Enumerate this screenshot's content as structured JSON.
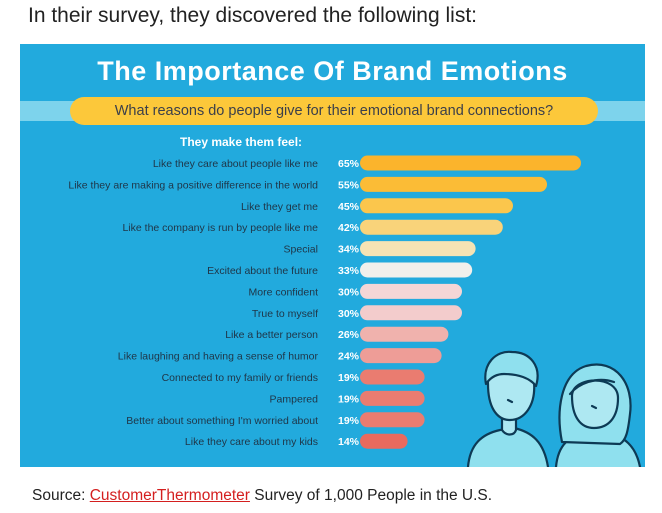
{
  "intro_text": "In their survey, they discovered the following list:",
  "chart_data": {
    "type": "bar",
    "orientation": "horizontal",
    "title": "The Importance Of Brand Emotions",
    "subtitle": "What reasons do people give for their emotional brand connections?",
    "header": "They make them feel:",
    "xlim": [
      0,
      65
    ],
    "categories": [
      "Like they care about people like me",
      "Like they are making a positive difference in the world",
      "Like they get me",
      "Like the company is run by people like me",
      "Special",
      "Excited about the future",
      "More confident",
      "True to myself",
      "Like a better person",
      "Like laughing and having a sense of humor",
      "Connected to my family or friends",
      "Pampered",
      "Better about something I'm worried about",
      "Like they care about my kids"
    ],
    "values": [
      65,
      55,
      45,
      42,
      34,
      33,
      30,
      30,
      26,
      24,
      19,
      19,
      19,
      14
    ],
    "value_labels": [
      "65%",
      "55%",
      "45%",
      "42%",
      "34%",
      "33%",
      "30%",
      "30%",
      "26%",
      "24%",
      "19%",
      "19%",
      "19%",
      "14%"
    ],
    "bar_colors": [
      "#fbb42c",
      "#fbbc36",
      "#fbc64c",
      "#f9d37a",
      "#f6e3b4",
      "#f1f0ec",
      "#f4d6d6",
      "#f3cccc",
      "#f0b2ad",
      "#ee9d97",
      "#ea7c70",
      "#ea7c70",
      "#ea7c70",
      "#e96a5e"
    ]
  },
  "colors": {
    "panel_bg": "#22aadd",
    "accent_yellow": "#fcc83a",
    "link_red": "#d41f1f"
  },
  "source": {
    "prefix": "Source: ",
    "link_text": "CustomerThermometer",
    "suffix": " Survey of 1,000 People in the U.S."
  }
}
